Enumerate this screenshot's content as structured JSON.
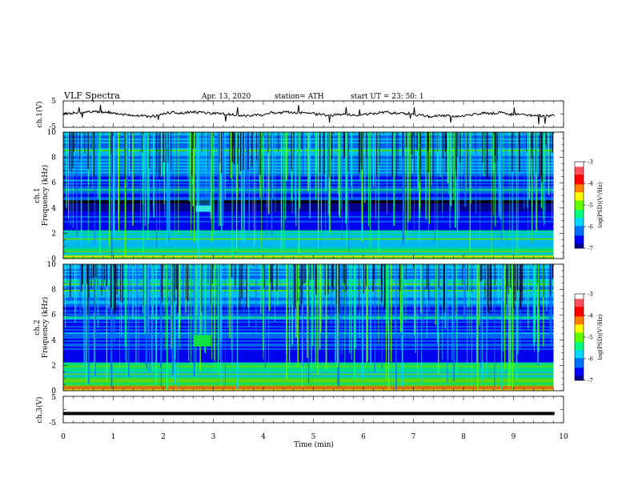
{
  "header": {
    "title": "VLF  Spectra",
    "date": "Apr. 13, 2020",
    "station": "station= ATH",
    "start": "start  UT  =   23: 50: 1"
  },
  "chart_data": [
    {
      "type": "line",
      "name": "ch1-waveform",
      "ylabel": "ch.1(V)",
      "ylim": [
        -5,
        5
      ],
      "ytick_labels": [
        "5",
        "-5"
      ],
      "xlim": [
        0,
        10
      ],
      "baseline": 0,
      "trace_color": "#000000"
    },
    {
      "type": "heatmap",
      "name": "ch1-spectrogram",
      "ylabel_top": "ch.1",
      "ylabel": "Frequency  (kHz)",
      "ylim": [
        0,
        10
      ],
      "ytick_labels": [
        "0",
        "2",
        "4",
        "6",
        "8",
        "10"
      ],
      "xlim": [
        0,
        9.8
      ],
      "burst": {
        "t_start": 2.65,
        "t_end": 2.95,
        "f_low": 3.7,
        "f_high": 4.2
      },
      "colorbar": {
        "label": "log(PSD)(V²/Hz)",
        "range": [
          -7,
          -3
        ],
        "tick_labels": [
          "-3",
          "-4",
          "-5",
          "-6",
          "-7"
        ]
      }
    },
    {
      "type": "heatmap",
      "name": "ch2-spectrogram",
      "ylabel_top": "ch.2",
      "ylabel": "Frequency  (kHz)",
      "ylim": [
        0,
        10
      ],
      "ytick_labels": [
        "0",
        "2",
        "4",
        "6",
        "8",
        "10"
      ],
      "xlim": [
        0,
        9.8
      ],
      "burst": {
        "t_start": 2.6,
        "t_end": 2.95,
        "f_low": 3.5,
        "f_high": 4.4
      },
      "colorbar": {
        "label": "log(PSD)(V²/Hz)",
        "range": [
          -7,
          -3
        ],
        "tick_labels": [
          "-3",
          "-4",
          "-5",
          "-6",
          "-7"
        ]
      }
    },
    {
      "type": "line",
      "name": "ch3-waveform",
      "ylabel": "ch.3(V)",
      "ylim": [
        -5,
        5
      ],
      "ytick_labels": [
        "5",
        "-5"
      ],
      "xlim": [
        0,
        10
      ],
      "baseline": -1.5,
      "trace_color": "#000000"
    }
  ],
  "xaxis": {
    "label": "Time  (min)",
    "ticks": [
      0,
      1,
      2,
      3,
      4,
      5,
      6,
      7,
      8,
      9,
      10
    ],
    "tick_labels": [
      "0",
      "1",
      "2",
      "3",
      "4",
      "5",
      "6",
      "7",
      "8",
      "9",
      "10"
    ]
  },
  "colormap": [
    "#000000",
    "#00008a",
    "#0000ff",
    "#0070ff",
    "#00d8ff",
    "#00ff80",
    "#60ff00",
    "#ffff00",
    "#ff8000",
    "#ff0000",
    "#ff5060",
    "#ffffff"
  ]
}
